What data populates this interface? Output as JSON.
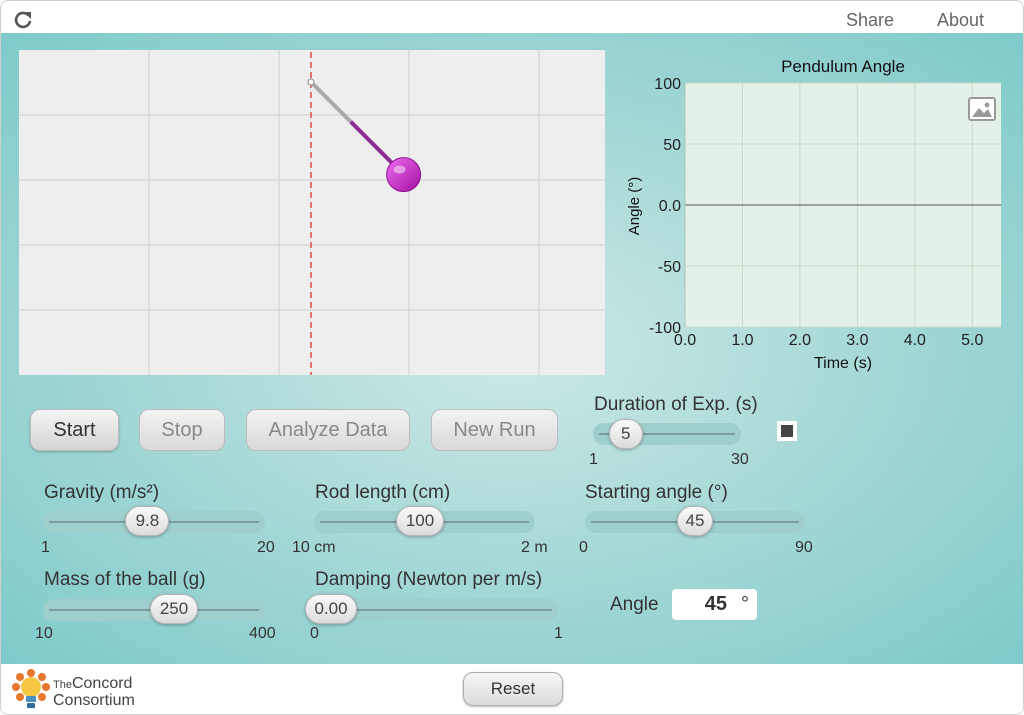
{
  "topbar": {
    "share": "Share",
    "about": "About"
  },
  "buttons": {
    "start": "Start",
    "stop": "Stop",
    "analyze": "Analyze Data",
    "new_run": "New Run",
    "reset": "Reset"
  },
  "duration": {
    "label": "Duration of Exp. (s)",
    "value": "5",
    "min": "1",
    "max": "30",
    "fraction": 0.138
  },
  "gravity": {
    "label": "Gravity (m/s²)",
    "value": "9.8",
    "min": "1",
    "max": "20",
    "fraction": 0.463
  },
  "rod": {
    "label": "Rod length (cm)",
    "value": "100",
    "min": "10 cm",
    "max": "2 m",
    "fraction": 0.474
  },
  "start_angle": {
    "label": "Starting angle (°)",
    "value": "45",
    "min": "0",
    "max": "90",
    "fraction": 0.5
  },
  "mass": {
    "label": "Mass of the ball (g)",
    "value": "250",
    "min": "10",
    "max": "400",
    "fraction": 0.615
  },
  "damping": {
    "label": "Damping (Newton per m/s)",
    "value": "0.00",
    "min": "0",
    "max": "1",
    "fraction": 0.0
  },
  "angle_readout": {
    "label": "Angle",
    "value": "45",
    "unit": "°"
  },
  "logo": {
    "the": "The",
    "line1": "Concord",
    "line2": "Consortium"
  },
  "pendulum": {
    "angle_deg": 45,
    "colors": {
      "ball": "#b01fb8",
      "rod_gray": "#aaaaaa",
      "rod_purple": "#8e2a96",
      "dashed": "#e03030"
    }
  },
  "chart_data": {
    "type": "line",
    "title": "Pendulum Angle",
    "xlabel": "Time (s)",
    "ylabel": "Angle (°)",
    "xlim": [
      0,
      5.5
    ],
    "ylim": [
      -100,
      100
    ],
    "xticks": [
      "0.0",
      "1.0",
      "2.0",
      "3.0",
      "4.0",
      "5.0"
    ],
    "yticks": [
      "100",
      "50",
      "0.0",
      "-50",
      "-100"
    ],
    "series": [],
    "grid": true
  }
}
